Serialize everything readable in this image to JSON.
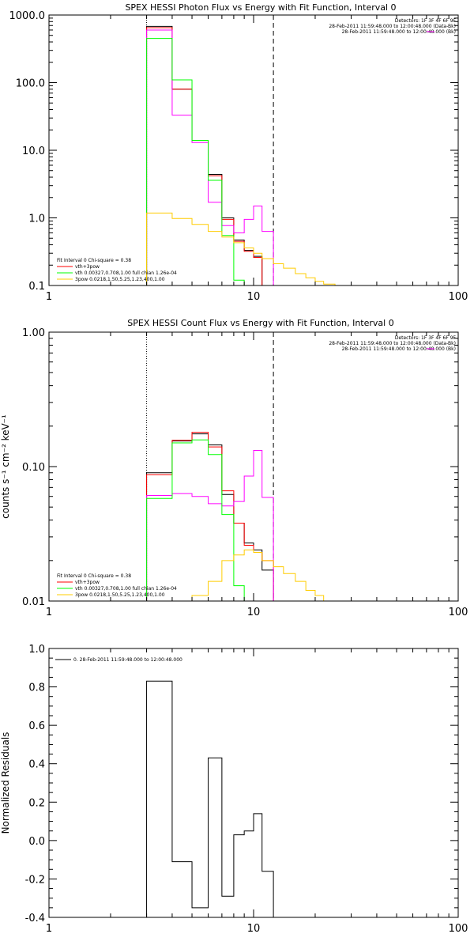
{
  "colors": {
    "background": "#ffffff",
    "axes": "#000000",
    "sum": "#000000",
    "red": "#ff0000",
    "magenta": "#ff00ff",
    "green": "#00ff00",
    "orange": "#ffcc00"
  },
  "chart_data": [
    {
      "type": "line",
      "title": "SPEX HESSI Photon Flux vs Energy with Fit Function, Interval 0",
      "xlabel": "",
      "ylabel": "",
      "xscale": "log",
      "yscale": "log",
      "xlim": [
        1,
        100
      ],
      "ylim": [
        0.1,
        1000
      ],
      "xticks": [
        {
          "v": 1,
          "label": "1"
        },
        {
          "v": 10,
          "label": "10"
        },
        {
          "v": 100,
          "label": "100"
        }
      ],
      "yticks": [
        {
          "v": 0.1,
          "label": "0.1"
        },
        {
          "v": 1,
          "label": "1.0"
        },
        {
          "v": 10,
          "label": "10.0"
        },
        {
          "v": 100,
          "label": "100.0"
        },
        {
          "v": 1000,
          "label": "1000.0"
        }
      ],
      "vlines": [
        {
          "x": 3,
          "style": "dotted"
        },
        {
          "x": 12.5,
          "style": "dashed"
        }
      ],
      "header_lines": [
        {
          "text": "Detectors: 1F 3F 4F 6F 9F",
          "color": "#000000"
        },
        {
          "text": "28-Feb-2011 11:59:48.000 to 12:00:48.000 (Data-Bk)",
          "color": "#000000"
        },
        {
          "text": "28-Feb-2011 11:59:48.000 to 12:00:48.000 (Bk)",
          "color": "#ff00ff"
        }
      ],
      "legend": {
        "position": "bottom-left",
        "title": "Fit Interval 0   Chi-square = 0.38",
        "items": [
          {
            "text": "vth+3pow",
            "color": "#ff0000"
          },
          {
            "text": "vth 0.00327,0.708,1.00   full chian 1.26e-04",
            "color": "#00ff00"
          },
          {
            "text": "3pow 0.0218,1.50,5.25,1.23,400,1.00",
            "color": "#ffcc00"
          }
        ]
      },
      "bin_edges": [
        3,
        4,
        5,
        6,
        7,
        8,
        9,
        10,
        11,
        12.5,
        14,
        16,
        18,
        20,
        22,
        25,
        28
      ],
      "series": [
        {
          "key": "data",
          "color": "#000000",
          "values": [
            680,
            80,
            14,
            4.4,
            1.0,
            0.47,
            0.33,
            0.27,
            0.1
          ]
        },
        {
          "key": "model",
          "color": "#ff0000",
          "values": [
            650,
            80,
            14,
            4.2,
            0.95,
            0.45,
            0.32,
            0.26,
            0.1
          ]
        },
        {
          "key": "bk",
          "color": "#ff00ff",
          "values": [
            600,
            33,
            13,
            1.7,
            0.77,
            0.6,
            0.95,
            1.5,
            0.63,
            0.1
          ]
        },
        {
          "key": "vth",
          "color": "#00ff00",
          "values": [
            450,
            110,
            14,
            3.6,
            0.55,
            0.12,
            0.1
          ]
        },
        {
          "key": "pow",
          "color": "#ffcc00",
          "values": [
            1.18,
            0.98,
            0.8,
            0.63,
            0.52,
            0.43,
            0.36,
            0.3,
            0.25,
            0.21,
            0.18,
            0.15,
            0.13,
            0.115,
            0.105,
            0.1
          ]
        }
      ]
    },
    {
      "type": "line",
      "title": "SPEX HESSI Count Flux vs Energy with Fit Function, Interval 0",
      "xlabel": "",
      "ylabel": "counts s⁻¹ cm⁻² keV⁻¹",
      "xscale": "log",
      "yscale": "log",
      "xlim": [
        1,
        100
      ],
      "ylim": [
        0.01,
        1
      ],
      "xticks": [
        {
          "v": 1,
          "label": "1"
        },
        {
          "v": 10,
          "label": "10"
        },
        {
          "v": 100,
          "label": "100"
        }
      ],
      "yticks": [
        {
          "v": 0.01,
          "label": "0.01"
        },
        {
          "v": 0.1,
          "label": "0.10"
        },
        {
          "v": 1,
          "label": "1.00"
        }
      ],
      "vlines": [
        {
          "x": 3,
          "style": "dotted"
        },
        {
          "x": 12.5,
          "style": "dashed"
        }
      ],
      "header_lines": [
        {
          "text": "Detectors: 1F 3F 4F 6F 9F",
          "color": "#000000"
        },
        {
          "text": "28-Feb-2011 11:59:48.000 to 12:00:48.000 (Data-Bk)",
          "color": "#000000"
        },
        {
          "text": "28-Feb-2011 11:59:48.000 to 12:00:48.000 (Bk)",
          "color": "#ff00ff"
        }
      ],
      "legend": {
        "position": "bottom-left",
        "title": "Fit Interval 0   Chi-square = 0.38",
        "items": [
          {
            "text": "vth+3pow",
            "color": "#ff0000"
          },
          {
            "text": "vth 0.00327,0.708,1.00   full chian 1.26e-04",
            "color": "#00ff00"
          },
          {
            "text": "3pow 0.0218,1.50,5.25,1.23,400,1.00",
            "color": "#ffcc00"
          }
        ]
      },
      "bin_edges": [
        3,
        4,
        5,
        6,
        7,
        8,
        9,
        10,
        11,
        12.5,
        14,
        16,
        18,
        20,
        22,
        25,
        28
      ],
      "series": [
        {
          "key": "data",
          "color": "#000000",
          "values": [
            0.09,
            0.155,
            0.175,
            0.145,
            0.062,
            0.038,
            0.027,
            0.024,
            0.017
          ]
        },
        {
          "key": "model",
          "color": "#ff0000",
          "values": [
            0.087,
            0.157,
            0.18,
            0.14,
            0.066,
            0.038,
            0.026,
            0.023,
            0.02
          ]
        },
        {
          "key": "bk",
          "color": "#ff00ff",
          "values": [
            0.061,
            0.063,
            0.06,
            0.053,
            0.051,
            0.055,
            0.085,
            0.132,
            0.059
          ]
        },
        {
          "key": "vth",
          "color": "#00ff00",
          "values": [
            0.058,
            0.15,
            0.158,
            0.123,
            0.044,
            0.013,
            0.01
          ]
        },
        {
          "key": "pow",
          "color": "#ffcc00",
          "values": [
            0.01,
            0.01,
            0.011,
            0.014,
            0.02,
            0.022,
            0.024,
            0.023,
            0.02,
            0.018,
            0.016,
            0.014,
            0.012,
            0.011,
            0.01,
            0.01
          ]
        }
      ]
    },
    {
      "type": "line",
      "title": "",
      "xlabel": "",
      "ylabel": "Normalized Residuals",
      "xscale": "log",
      "yscale": "linear",
      "xlim": [
        1,
        100
      ],
      "ylim": [
        -0.4,
        1.0
      ],
      "xticks": [
        {
          "v": 1,
          "label": "1"
        },
        {
          "v": 10,
          "label": "10"
        },
        {
          "v": 100,
          "label": "100"
        }
      ],
      "yticks": [
        {
          "v": -0.4,
          "label": "-0.4"
        },
        {
          "v": -0.2,
          "label": "-0.2"
        },
        {
          "v": 0.0,
          "label": "0.0"
        },
        {
          "v": 0.2,
          "label": "0.2"
        },
        {
          "v": 0.4,
          "label": "0.4"
        },
        {
          "v": 0.6,
          "label": "0.6"
        },
        {
          "v": 0.8,
          "label": "0.8"
        },
        {
          "v": 1.0,
          "label": "1.0"
        }
      ],
      "legend": {
        "position": "top-left",
        "items": [
          {
            "text": "0. 28-Feb-2011 11:59:48.000 to 12:00:48.000",
            "color": "#000000"
          }
        ]
      },
      "bin_edges": [
        3,
        4,
        5,
        6,
        7,
        8,
        9,
        10,
        11,
        12.5
      ],
      "series": [
        {
          "key": "residuals",
          "color": "#000000",
          "values": [
            0.83,
            -0.11,
            -0.35,
            0.43,
            -0.29,
            0.03,
            0.05,
            0.14,
            -0.16
          ]
        }
      ]
    }
  ]
}
